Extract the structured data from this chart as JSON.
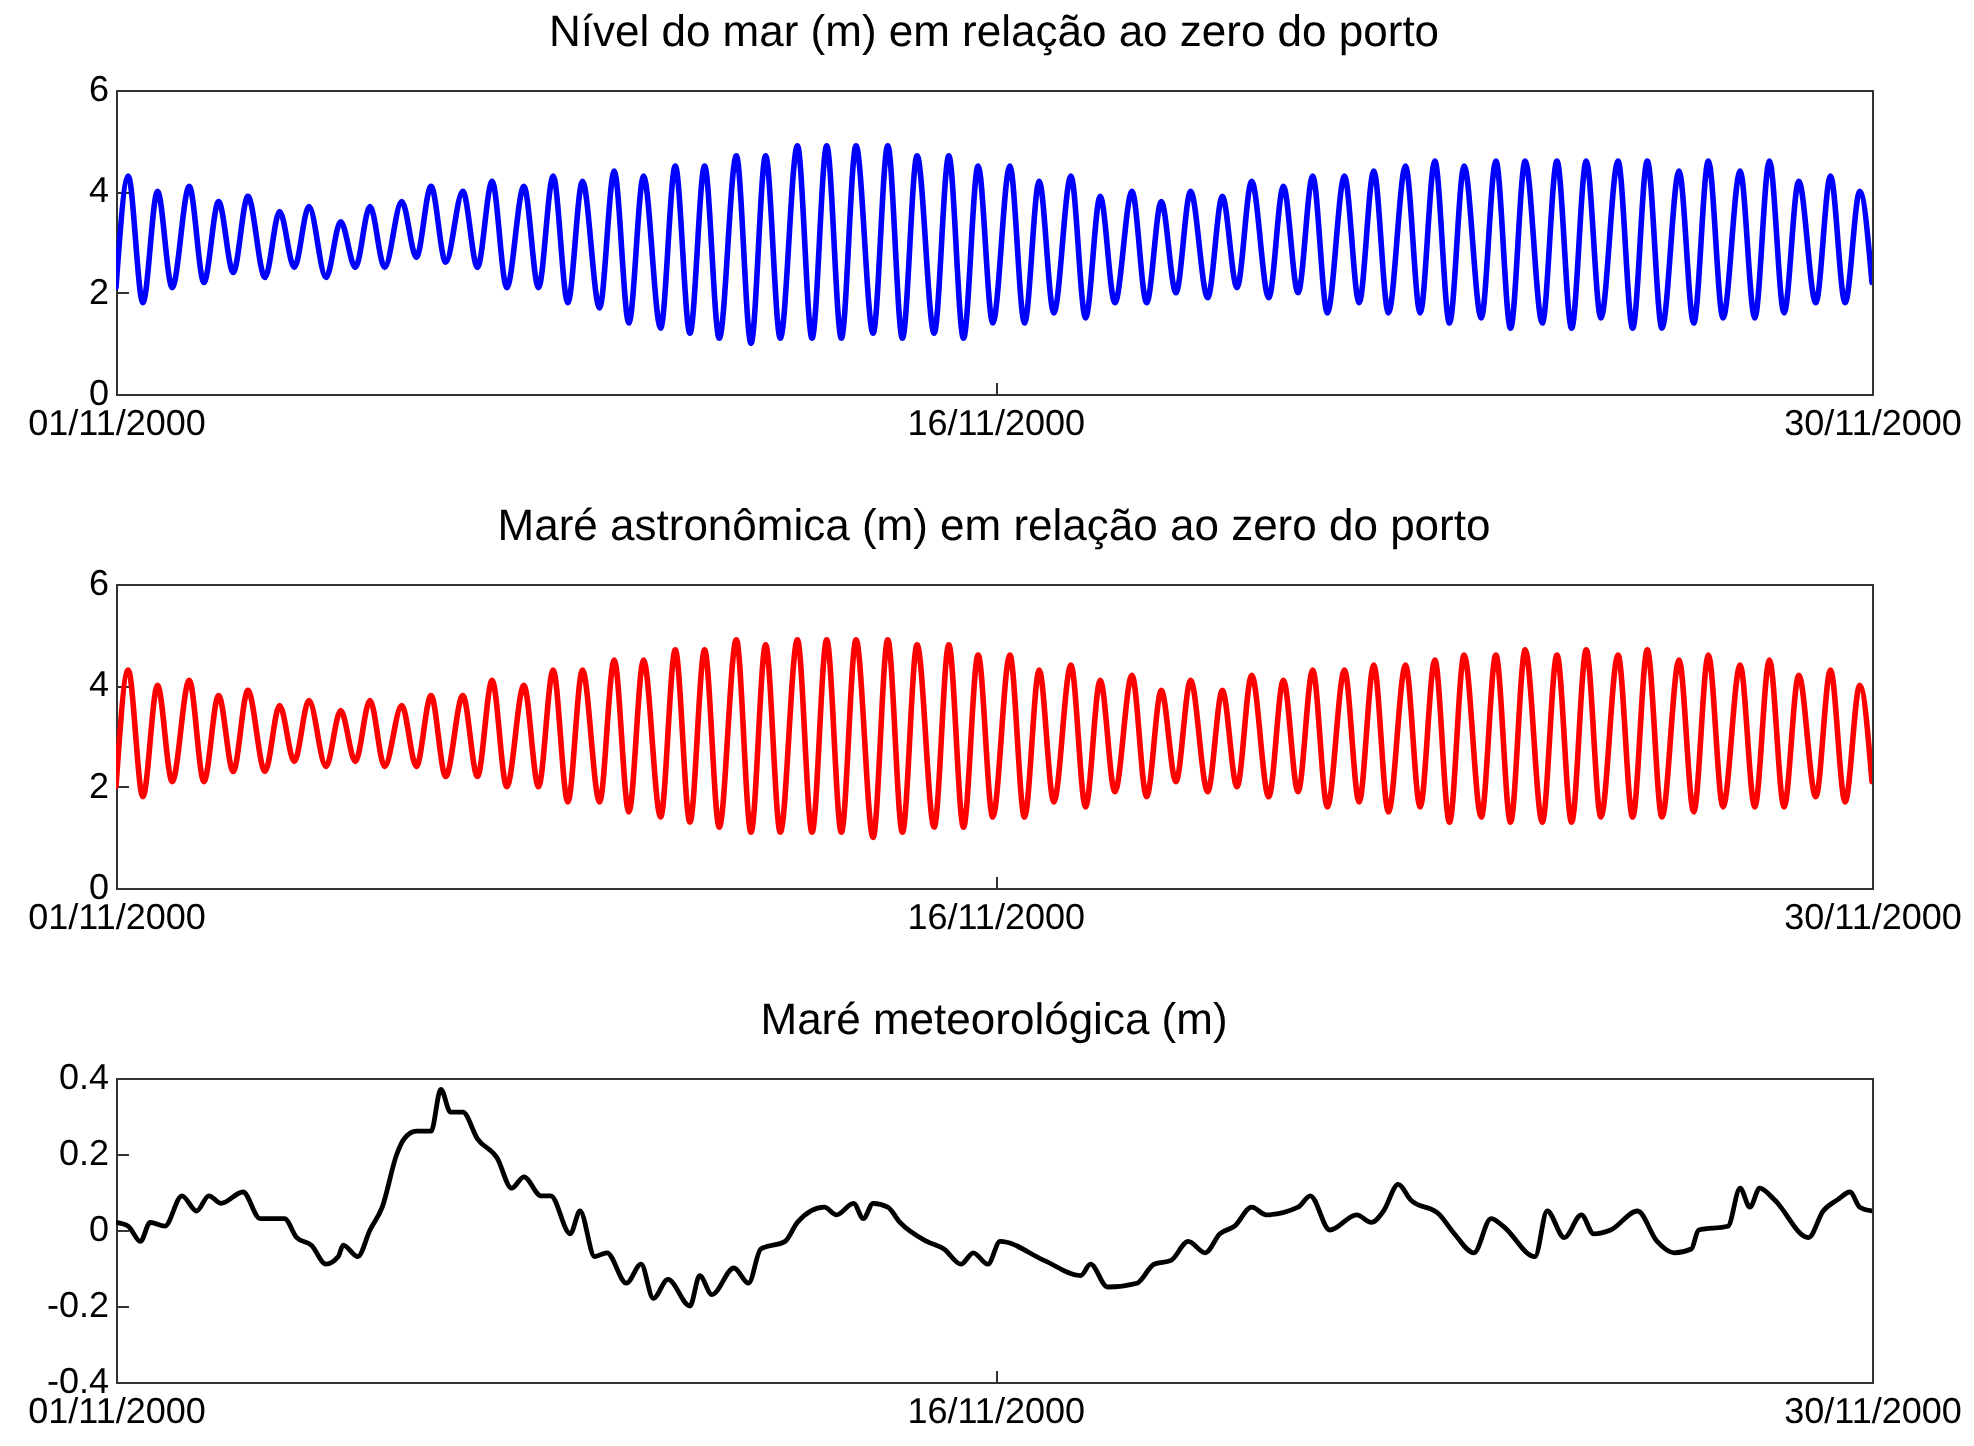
{
  "chart_data": [
    {
      "type": "line",
      "title": "Nível do mar (m) em relação ao zero do porto",
      "x": [
        "2000-11-01T00:00",
        "2000-11-01T05:00",
        "2000-11-01T11:00",
        "2000-11-01T17:00",
        "2000-11-01T23:00",
        "2000-11-02T06:00",
        "2000-11-02T12:00",
        "2000-11-02T18:00",
        "2000-11-03T00:00",
        "2000-11-03T06:00",
        "2000-11-03T13:00",
        "2000-11-03T19:00",
        "2000-11-04T01:00",
        "2000-11-04T07:00",
        "2000-11-04T14:00",
        "2000-11-04T20:00",
        "2000-11-05T02:00",
        "2000-11-05T08:00",
        "2000-11-05T14:00",
        "2000-11-05T21:00",
        "2000-11-06T03:00",
        "2000-11-06T09:00",
        "2000-11-06T15:00",
        "2000-11-06T22:00",
        "2000-11-07T04:00",
        "2000-11-07T10:00",
        "2000-11-07T16:00",
        "2000-11-07T23:00",
        "2000-11-08T05:00",
        "2000-11-08T11:00",
        "2000-11-08T17:00",
        "2000-11-08T23:00",
        "2000-11-09T06:00",
        "2000-11-09T12:00",
        "2000-11-09T18:00",
        "2000-11-10T00:00",
        "2000-11-10T07:00",
        "2000-11-10T13:00",
        "2000-11-10T19:00",
        "2000-11-11T01:00",
        "2000-11-11T07:00",
        "2000-11-11T14:00",
        "2000-11-11T20:00",
        "2000-11-12T02:00",
        "2000-11-12T08:00",
        "2000-11-12T15:00",
        "2000-11-12T21:00",
        "2000-11-13T03:00",
        "2000-11-13T09:00",
        "2000-11-13T15:00",
        "2000-11-13T22:00",
        "2000-11-14T04:00",
        "2000-11-14T10:00",
        "2000-11-14T16:00",
        "2000-11-14T23:00",
        "2000-11-15T05:00",
        "2000-11-15T11:00",
        "2000-11-15T17:00",
        "2000-11-15T23:00",
        "2000-11-16T06:00",
        "2000-11-16T12:00",
        "2000-11-16T18:00",
        "2000-11-17T00:00",
        "2000-11-17T07:00",
        "2000-11-17T13:00",
        "2000-11-17T19:00",
        "2000-11-18T01:00",
        "2000-11-18T08:00",
        "2000-11-18T14:00",
        "2000-11-18T20:00",
        "2000-11-19T02:00",
        "2000-11-19T08:00",
        "2000-11-19T15:00",
        "2000-11-19T21:00",
        "2000-11-20T03:00",
        "2000-11-20T09:00",
        "2000-11-20T16:00",
        "2000-11-20T22:00",
        "2000-11-21T04:00",
        "2000-11-21T10:00",
        "2000-11-21T16:00",
        "2000-11-21T23:00",
        "2000-11-22T05:00",
        "2000-11-22T11:00",
        "2000-11-22T17:00",
        "2000-11-23T00:00",
        "2000-11-23T06:00",
        "2000-11-23T12:00",
        "2000-11-23T18:00",
        "2000-11-24T00:00",
        "2000-11-24T07:00",
        "2000-11-24T13:00",
        "2000-11-24T19:00",
        "2000-11-25T01:00",
        "2000-11-25T08:00",
        "2000-11-25T14:00",
        "2000-11-25T20:00",
        "2000-11-26T02:00",
        "2000-11-26T08:00",
        "2000-11-26T15:00",
        "2000-11-26T21:00",
        "2000-11-27T03:00",
        "2000-11-27T09:00",
        "2000-11-27T16:00",
        "2000-11-27T22:00",
        "2000-11-28T04:00",
        "2000-11-28T10:00",
        "2000-11-28T17:00",
        "2000-11-28T23:00",
        "2000-11-29T05:00",
        "2000-11-29T11:00",
        "2000-11-29T17:00",
        "2000-11-30T00:00",
        "2000-11-30T06:00",
        "2000-11-30T12:00",
        "2000-11-30T18:00",
        "2000-11-30T23:00"
      ],
      "xlim": [
        "2000-11-01T00:00",
        "2000-11-30T23:00"
      ],
      "xticks": [
        {
          "value": "2000-11-01T00:00",
          "label": "01/11/2000"
        },
        {
          "value": "2000-11-16T00:00",
          "label": "16/11/2000"
        },
        {
          "value": "2000-11-30T23:00",
          "label": "30/11/2000"
        }
      ],
      "ylim": [
        0,
        6
      ],
      "yticks": [
        0,
        2,
        4,
        6
      ],
      "series": [
        {
          "color": "#0000ff",
          "values": [
            2.1,
            4.3,
            1.8,
            4.0,
            2.1,
            4.1,
            2.2,
            3.8,
            2.4,
            3.9,
            2.3,
            3.6,
            2.5,
            3.7,
            2.3,
            3.4,
            2.5,
            3.7,
            2.5,
            3.8,
            2.7,
            4.1,
            2.6,
            4.0,
            2.5,
            4.2,
            2.1,
            4.1,
            2.1,
            4.3,
            1.8,
            4.2,
            1.7,
            4.4,
            1.4,
            4.3,
            1.3,
            4.5,
            1.2,
            4.5,
            1.1,
            4.7,
            1.0,
            4.7,
            1.1,
            4.9,
            1.1,
            4.9,
            1.1,
            4.9,
            1.2,
            4.9,
            1.1,
            4.7,
            1.2,
            4.7,
            1.1,
            4.5,
            1.4,
            4.5,
            1.4,
            4.2,
            1.6,
            4.3,
            1.5,
            3.9,
            1.8,
            4.0,
            1.8,
            3.8,
            2.0,
            4.0,
            1.9,
            3.9,
            2.1,
            4.2,
            1.9,
            4.1,
            2.0,
            4.3,
            1.6,
            4.3,
            1.8,
            4.4,
            1.6,
            4.5,
            1.6,
            4.6,
            1.4,
            4.5,
            1.5,
            4.6,
            1.3,
            4.6,
            1.4,
            4.6,
            1.3,
            4.6,
            1.5,
            4.6,
            1.3,
            4.6,
            1.3,
            4.4,
            1.4,
            4.6,
            1.5,
            4.4,
            1.5,
            4.6,
            1.6,
            4.2,
            1.8,
            4.3,
            1.8,
            4.0,
            2.2
          ]
        }
      ]
    },
    {
      "type": "line",
      "title": "Maré astronômica (m) em relação ao zero do porto",
      "x": [
        "2000-11-01T00:00",
        "2000-11-01T05:00",
        "2000-11-01T11:00",
        "2000-11-01T17:00",
        "2000-11-01T23:00",
        "2000-11-02T06:00",
        "2000-11-02T12:00",
        "2000-11-02T18:00",
        "2000-11-03T00:00",
        "2000-11-03T06:00",
        "2000-11-03T13:00",
        "2000-11-03T19:00",
        "2000-11-04T01:00",
        "2000-11-04T07:00",
        "2000-11-04T14:00",
        "2000-11-04T20:00",
        "2000-11-05T02:00",
        "2000-11-05T08:00",
        "2000-11-05T14:00",
        "2000-11-05T21:00",
        "2000-11-06T03:00",
        "2000-11-06T09:00",
        "2000-11-06T15:00",
        "2000-11-06T22:00",
        "2000-11-07T04:00",
        "2000-11-07T10:00",
        "2000-11-07T16:00",
        "2000-11-07T23:00",
        "2000-11-08T05:00",
        "2000-11-08T11:00",
        "2000-11-08T17:00",
        "2000-11-08T23:00",
        "2000-11-09T06:00",
        "2000-11-09T12:00",
        "2000-11-09T18:00",
        "2000-11-10T00:00",
        "2000-11-10T07:00",
        "2000-11-10T13:00",
        "2000-11-10T19:00",
        "2000-11-11T01:00",
        "2000-11-11T07:00",
        "2000-11-11T14:00",
        "2000-11-11T20:00",
        "2000-11-12T02:00",
        "2000-11-12T08:00",
        "2000-11-12T15:00",
        "2000-11-12T21:00",
        "2000-11-13T03:00",
        "2000-11-13T09:00",
        "2000-11-13T15:00",
        "2000-11-13T22:00",
        "2000-11-14T04:00",
        "2000-11-14T10:00",
        "2000-11-14T16:00",
        "2000-11-14T23:00",
        "2000-11-15T05:00",
        "2000-11-15T11:00",
        "2000-11-15T17:00",
        "2000-11-15T23:00",
        "2000-11-16T06:00",
        "2000-11-16T12:00",
        "2000-11-16T18:00",
        "2000-11-17T00:00",
        "2000-11-17T07:00",
        "2000-11-17T13:00",
        "2000-11-17T19:00",
        "2000-11-18T01:00",
        "2000-11-18T08:00",
        "2000-11-18T14:00",
        "2000-11-18T20:00",
        "2000-11-19T02:00",
        "2000-11-19T08:00",
        "2000-11-19T15:00",
        "2000-11-19T21:00",
        "2000-11-20T03:00",
        "2000-11-20T09:00",
        "2000-11-20T16:00",
        "2000-11-20T22:00",
        "2000-11-21T04:00",
        "2000-11-21T10:00",
        "2000-11-21T16:00",
        "2000-11-21T23:00",
        "2000-11-22T05:00",
        "2000-11-22T11:00",
        "2000-11-22T17:00",
        "2000-11-23T00:00",
        "2000-11-23T06:00",
        "2000-11-23T12:00",
        "2000-11-23T18:00",
        "2000-11-24T00:00",
        "2000-11-24T07:00",
        "2000-11-24T13:00",
        "2000-11-24T19:00",
        "2000-11-25T01:00",
        "2000-11-25T08:00",
        "2000-11-25T14:00",
        "2000-11-25T20:00",
        "2000-11-26T02:00",
        "2000-11-26T08:00",
        "2000-11-26T15:00",
        "2000-11-26T21:00",
        "2000-11-27T03:00",
        "2000-11-27T09:00",
        "2000-11-27T16:00",
        "2000-11-27T22:00",
        "2000-11-28T04:00",
        "2000-11-28T10:00",
        "2000-11-28T17:00",
        "2000-11-28T23:00",
        "2000-11-29T05:00",
        "2000-11-29T11:00",
        "2000-11-29T17:00",
        "2000-11-30T00:00",
        "2000-11-30T06:00",
        "2000-11-30T12:00",
        "2000-11-30T18:00",
        "2000-11-30T23:00"
      ],
      "xlim": [
        "2000-11-01T00:00",
        "2000-11-30T23:00"
      ],
      "xticks": [
        {
          "value": "2000-11-01T00:00",
          "label": "01/11/2000"
        },
        {
          "value": "2000-11-16T00:00",
          "label": "16/11/2000"
        },
        {
          "value": "2000-11-30T23:00",
          "label": "30/11/2000"
        }
      ],
      "ylim": [
        0,
        6
      ],
      "yticks": [
        0,
        2,
        4,
        6
      ],
      "series": [
        {
          "color": "#ff0000",
          "values": [
            2.0,
            4.3,
            1.8,
            4.0,
            2.1,
            4.1,
            2.1,
            3.8,
            2.3,
            3.9,
            2.3,
            3.6,
            2.5,
            3.7,
            2.4,
            3.5,
            2.5,
            3.7,
            2.4,
            3.6,
            2.4,
            3.8,
            2.2,
            3.8,
            2.2,
            4.1,
            2.0,
            4.0,
            2.0,
            4.3,
            1.7,
            4.3,
            1.7,
            4.5,
            1.5,
            4.5,
            1.4,
            4.7,
            1.3,
            4.7,
            1.2,
            4.9,
            1.1,
            4.8,
            1.1,
            4.9,
            1.1,
            4.9,
            1.1,
            4.9,
            1.0,
            4.9,
            1.1,
            4.8,
            1.2,
            4.8,
            1.2,
            4.6,
            1.4,
            4.6,
            1.4,
            4.3,
            1.7,
            4.4,
            1.6,
            4.1,
            1.9,
            4.2,
            1.8,
            3.9,
            2.1,
            4.1,
            1.9,
            3.9,
            2.0,
            4.2,
            1.8,
            4.1,
            1.9,
            4.3,
            1.6,
            4.3,
            1.7,
            4.4,
            1.5,
            4.4,
            1.6,
            4.5,
            1.3,
            4.6,
            1.4,
            4.6,
            1.3,
            4.7,
            1.3,
            4.6,
            1.3,
            4.7,
            1.4,
            4.6,
            1.4,
            4.7,
            1.4,
            4.5,
            1.5,
            4.6,
            1.6,
            4.4,
            1.6,
            4.5,
            1.6,
            4.2,
            1.8,
            4.3,
            1.7,
            4.0,
            2.1
          ]
        }
      ]
    },
    {
      "type": "line",
      "title": "Maré meteorológica (m)",
      "x": [
        "2000-11-01T00:00",
        "2000-11-01T05:00",
        "2000-11-01T10:00",
        "2000-11-01T14:00",
        "2000-11-01T20:00",
        "2000-11-02T03:00",
        "2000-11-02T09:00",
        "2000-11-02T14:00",
        "2000-11-02T19:00",
        "2000-11-03T04:00",
        "2000-11-03T11:00",
        "2000-11-03T21:00",
        "2000-11-04T02:00",
        "2000-11-04T08:00",
        "2000-11-04T14:00",
        "2000-11-04T19:00",
        "2000-11-04T21:00",
        "2000-11-05T03:00",
        "2000-11-05T08:00",
        "2000-11-05T13:00",
        "2000-11-05T19:00",
        "2000-11-05T22:00",
        "2000-11-06T03:00",
        "2000-11-06T09:00",
        "2000-11-06T13:00",
        "2000-11-06T17:00",
        "2000-11-06T22:00",
        "2000-11-07T04:00",
        "2000-11-07T12:00",
        "2000-11-07T18:00",
        "2000-11-07T23:00",
        "2000-11-08T06:00",
        "2000-11-08T10:00",
        "2000-11-08T18:00",
        "2000-11-08T22:00",
        "2000-11-09T04:00",
        "2000-11-09T09:00",
        "2000-11-09T17:00",
        "2000-11-09T23:00",
        "2000-11-10T04:00",
        "2000-11-10T10:00",
        "2000-11-10T19:00",
        "2000-11-10T23:00",
        "2000-11-11T04:00",
        "2000-11-11T13:00",
        "2000-11-11T19:00",
        "2000-11-12T00:00",
        "2000-11-12T10:00",
        "2000-11-12T15:00",
        "2000-11-13T02:00",
        "2000-11-13T07:00",
        "2000-11-13T14:00",
        "2000-11-13T18:00",
        "2000-11-13T22:00",
        "2000-11-14T04:00",
        "2000-11-14T09:00",
        "2000-11-14T20:00",
        "2000-11-15T03:00",
        "2000-11-15T10:00",
        "2000-11-15T15:00",
        "2000-11-15T21:00",
        "2000-11-16T02:00",
        "2000-11-16T20:00",
        "2000-11-17T11:00",
        "2000-11-17T15:00",
        "2000-11-17T22:00",
        "2000-11-18T10:00",
        "2000-11-18T17:00",
        "2000-11-19T00:00",
        "2000-11-19T07:00",
        "2000-11-19T14:00",
        "2000-11-19T20:00",
        "2000-11-20T02:00",
        "2000-11-20T09:00",
        "2000-11-20T15:00",
        "2000-11-21T04:00",
        "2000-11-21T09:00",
        "2000-11-21T17:00",
        "2000-11-22T04:00",
        "2000-11-22T10:00",
        "2000-11-22T15:00",
        "2000-11-22T21:00",
        "2000-11-23T02:00",
        "2000-11-23T14:00",
        "2000-11-23T20:00",
        "2000-11-24T04:00",
        "2000-11-24T11:00",
        "2000-11-24T16:00",
        "2000-11-25T05:00",
        "2000-11-25T10:00",
        "2000-11-25T17:00",
        "2000-11-26T00:00",
        "2000-11-26T05:00",
        "2000-11-26T12:00",
        "2000-11-26T23:00",
        "2000-11-27T07:00",
        "2000-11-27T14:00",
        "2000-11-27T21:00",
        "2000-11-28T00:00",
        "2000-11-28T12:00",
        "2000-11-28T17:00",
        "2000-11-28T21:00",
        "2000-11-29T01:00",
        "2000-11-29T07:00",
        "2000-11-29T21:00",
        "2000-11-30T03:00",
        "2000-11-30T09:00",
        "2000-11-30T14:00",
        "2000-11-30T18:00",
        "2000-11-30T23:00"
      ],
      "xlim": [
        "2000-11-01T00:00",
        "2000-11-30T23:00"
      ],
      "xticks": [
        {
          "value": "2000-11-01T00:00",
          "label": "01/11/2000"
        },
        {
          "value": "2000-11-16T00:00",
          "label": "16/11/2000"
        },
        {
          "value": "2000-11-30T23:00",
          "label": "30/11/2000"
        }
      ],
      "ylim": [
        -0.4,
        0.4
      ],
      "yticks": [
        -0.4,
        -0.2,
        0,
        0.2,
        0.4
      ],
      "series": [
        {
          "color": "#000000",
          "values": [
            0.02,
            0.01,
            -0.03,
            0.02,
            0.01,
            0.09,
            0.05,
            0.09,
            0.07,
            0.1,
            0.03,
            0.03,
            -0.02,
            -0.04,
            -0.09,
            -0.07,
            -0.04,
            -0.07,
            0.0,
            0.06,
            0.2,
            0.24,
            0.26,
            0.26,
            0.37,
            0.31,
            0.31,
            0.24,
            0.19,
            0.11,
            0.14,
            0.09,
            0.09,
            -0.01,
            0.05,
            -0.07,
            -0.06,
            -0.14,
            -0.09,
            -0.18,
            -0.13,
            -0.2,
            -0.12,
            -0.17,
            -0.1,
            -0.14,
            -0.05,
            -0.03,
            0.02,
            0.06,
            0.04,
            0.07,
            0.03,
            0.07,
            0.06,
            0.02,
            -0.03,
            -0.05,
            -0.09,
            -0.06,
            -0.09,
            -0.03,
            -0.08,
            -0.12,
            -0.09,
            -0.15,
            -0.14,
            -0.09,
            -0.08,
            -0.03,
            -0.06,
            -0.01,
            0.01,
            0.06,
            0.04,
            0.06,
            0.09,
            0.0,
            0.04,
            0.02,
            0.05,
            0.12,
            0.08,
            0.04,
            -0.01,
            -0.06,
            0.03,
            0.01,
            -0.07,
            0.05,
            -0.02,
            0.04,
            -0.01,
            0.0,
            0.05,
            -0.03,
            -0.06,
            -0.05,
            0.0,
            0.01,
            0.11,
            0.06,
            0.11,
            0.08,
            -0.02,
            0.05,
            0.08,
            0.1,
            0.06,
            0.05
          ]
        }
      ]
    }
  ]
}
